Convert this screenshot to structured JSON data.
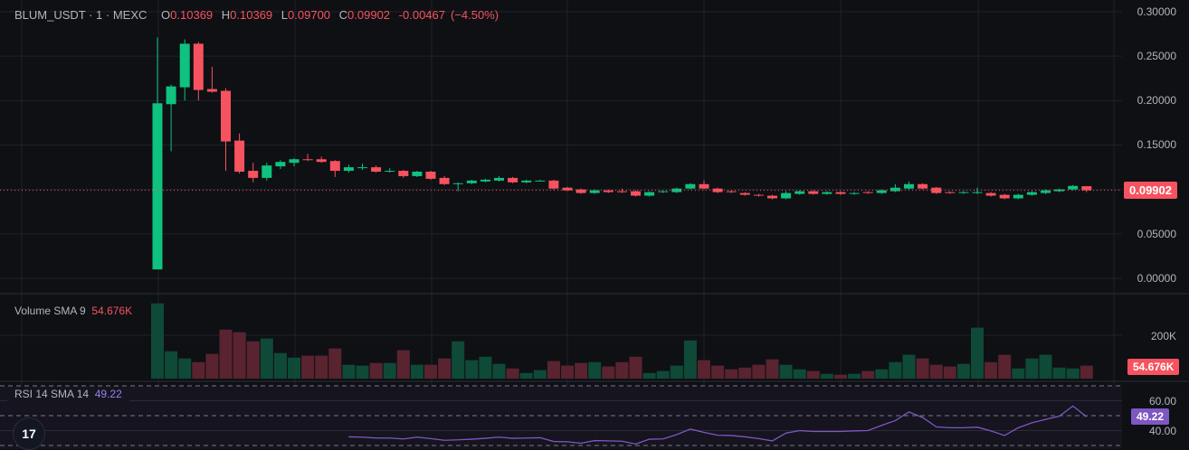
{
  "header": {
    "symbol": "BLUM_USDT · 1 · MEXC",
    "open_label": "O",
    "open": "0.10369",
    "high_label": "H",
    "high": "0.10369",
    "low_label": "L",
    "low": "0.09700",
    "close_label": "C",
    "close": "0.09902",
    "change": "-0.00467",
    "change_pct": "(−4.50%)"
  },
  "price_axis": {
    "ticks": [
      "0.30000",
      "0.25000",
      "0.20000",
      "0.15000",
      "0.10000",
      "0.05000",
      "0.00000"
    ],
    "current_price": "0.09902"
  },
  "volume_pane": {
    "label": "Volume SMA 9",
    "value": "54.676K",
    "tick": "200K",
    "current_tag": "54.676K"
  },
  "rsi_pane": {
    "label": "RSI 14 SMA 14",
    "value": "49.22",
    "ticks": [
      "60.00",
      "40.00"
    ],
    "current_tag": "49.22"
  },
  "logo_text": "TV",
  "colors": {
    "up": "#0fc27f",
    "down": "#f7525f",
    "vol_up": "#0e4a37",
    "vol_down": "#5a2330",
    "rsi_line": "#7e57c2",
    "background": "#0e1014"
  },
  "chart_data": {
    "type": "candlestick",
    "price_ylim": [
      0,
      0.3
    ],
    "volume_ylim": [
      0,
      400000
    ],
    "rsi_ylim": [
      30,
      70
    ],
    "rsi_bands": [
      70,
      50,
      30
    ],
    "ohlc": [
      [
        0.01,
        0.271,
        0.01,
        0.197
      ],
      [
        0.196,
        0.218,
        0.143,
        0.216
      ],
      [
        0.215,
        0.269,
        0.2,
        0.264
      ],
      [
        0.264,
        0.266,
        0.2,
        0.212
      ],
      [
        0.213,
        0.238,
        0.209,
        0.21
      ],
      [
        0.211,
        0.214,
        0.121,
        0.154
      ],
      [
        0.155,
        0.163,
        0.118,
        0.12
      ],
      [
        0.121,
        0.13,
        0.108,
        0.113
      ],
      [
        0.113,
        0.13,
        0.11,
        0.127
      ],
      [
        0.126,
        0.133,
        0.123,
        0.131
      ],
      [
        0.13,
        0.135,
        0.126,
        0.134
      ],
      [
        0.134,
        0.14,
        0.132,
        0.133
      ],
      [
        0.134,
        0.137,
        0.13,
        0.131
      ],
      [
        0.132,
        0.133,
        0.114,
        0.121
      ],
      [
        0.121,
        0.128,
        0.119,
        0.125
      ],
      [
        0.125,
        0.129,
        0.122,
        0.125
      ],
      [
        0.125,
        0.127,
        0.119,
        0.12
      ],
      [
        0.121,
        0.124,
        0.119,
        0.121
      ],
      [
        0.121,
        0.122,
        0.113,
        0.115
      ],
      [
        0.115,
        0.121,
        0.114,
        0.12
      ],
      [
        0.12,
        0.121,
        0.111,
        0.112
      ],
      [
        0.113,
        0.115,
        0.105,
        0.106
      ],
      [
        0.106,
        0.108,
        0.098,
        0.107
      ],
      [
        0.107,
        0.111,
        0.106,
        0.11
      ],
      [
        0.109,
        0.112,
        0.108,
        0.111
      ],
      [
        0.11,
        0.115,
        0.109,
        0.113
      ],
      [
        0.113,
        0.114,
        0.107,
        0.108
      ],
      [
        0.108,
        0.111,
        0.107,
        0.11
      ],
      [
        0.11,
        0.111,
        0.109,
        0.11
      ],
      [
        0.11,
        0.111,
        0.1,
        0.101
      ],
      [
        0.102,
        0.103,
        0.098,
        0.099
      ],
      [
        0.1,
        0.101,
        0.095,
        0.096
      ],
      [
        0.096,
        0.1,
        0.095,
        0.099
      ],
      [
        0.099,
        0.1,
        0.096,
        0.097
      ],
      [
        0.098,
        0.101,
        0.096,
        0.097
      ],
      [
        0.098,
        0.099,
        0.092,
        0.093
      ],
      [
        0.093,
        0.098,
        0.092,
        0.097
      ],
      [
        0.097,
        0.099,
        0.096,
        0.098
      ],
      [
        0.097,
        0.102,
        0.096,
        0.101
      ],
      [
        0.101,
        0.107,
        0.1,
        0.106
      ],
      [
        0.106,
        0.11,
        0.1,
        0.101
      ],
      [
        0.101,
        0.102,
        0.096,
        0.097
      ],
      [
        0.098,
        0.099,
        0.096,
        0.097
      ],
      [
        0.096,
        0.097,
        0.093,
        0.094
      ],
      [
        0.094,
        0.095,
        0.092,
        0.093
      ],
      [
        0.093,
        0.094,
        0.089,
        0.09
      ],
      [
        0.09,
        0.098,
        0.089,
        0.096
      ],
      [
        0.095,
        0.099,
        0.094,
        0.098
      ],
      [
        0.098,
        0.099,
        0.094,
        0.095
      ],
      [
        0.095,
        0.098,
        0.094,
        0.097
      ],
      [
        0.097,
        0.098,
        0.094,
        0.095
      ],
      [
        0.095,
        0.097,
        0.094,
        0.096
      ],
      [
        0.097,
        0.098,
        0.095,
        0.096
      ],
      [
        0.096,
        0.1,
        0.095,
        0.099
      ],
      [
        0.098,
        0.106,
        0.097,
        0.102
      ],
      [
        0.101,
        0.109,
        0.1,
        0.106
      ],
      [
        0.106,
        0.107,
        0.1,
        0.101
      ],
      [
        0.102,
        0.103,
        0.095,
        0.096
      ],
      [
        0.097,
        0.098,
        0.095,
        0.096
      ],
      [
        0.096,
        0.098,
        0.095,
        0.097
      ],
      [
        0.096,
        0.102,
        0.095,
        0.097
      ],
      [
        0.096,
        0.097,
        0.092,
        0.093
      ],
      [
        0.094,
        0.095,
        0.089,
        0.09
      ],
      [
        0.09,
        0.095,
        0.089,
        0.094
      ],
      [
        0.094,
        0.098,
        0.093,
        0.097
      ],
      [
        0.096,
        0.1,
        0.095,
        0.099
      ],
      [
        0.098,
        0.101,
        0.097,
        0.1
      ],
      [
        0.1,
        0.105,
        0.099,
        0.104
      ],
      [
        0.10369,
        0.10369,
        0.097,
        0.09902
      ]
    ],
    "volume": [
      347000,
      126000,
      93000,
      76000,
      114000,
      226000,
      214000,
      172000,
      185000,
      118000,
      97000,
      106000,
      106000,
      139000,
      64000,
      60000,
      72000,
      72000,
      131000,
      64000,
      64000,
      93000,
      172000,
      85000,
      101000,
      68000,
      47000,
      26000,
      39000,
      81000,
      60000,
      72000,
      76000,
      56000,
      76000,
      101000,
      26000,
      35000,
      60000,
      176000,
      85000,
      60000,
      43000,
      51000,
      64000,
      89000,
      64000,
      43000,
      35000,
      22000,
      18000,
      22000,
      35000,
      43000,
      76000,
      110000,
      93000,
      64000,
      56000,
      68000,
      235000,
      76000,
      110000,
      47000,
      93000,
      110000,
      51000,
      47000,
      60000
    ],
    "rsi": [
      null,
      null,
      null,
      null,
      null,
      null,
      null,
      null,
      null,
      null,
      null,
      null,
      null,
      null,
      35.8,
      35.6,
      35.0,
      35.0,
      34.4,
      35.6,
      34.6,
      33.5,
      33.8,
      34.2,
      34.8,
      35.6,
      34.8,
      35.0,
      35.2,
      32.7,
      32.5,
      31.5,
      33.3,
      33.1,
      32.9,
      31.0,
      34.2,
      34.4,
      37.3,
      41.0,
      38.8,
      36.9,
      36.7,
      35.8,
      34.6,
      33.1,
      38.3,
      40.0,
      39.4,
      39.4,
      39.4,
      39.8,
      40.0,
      43.5,
      46.7,
      52.5,
      48.8,
      42.5,
      41.9,
      41.9,
      42.3,
      39.8,
      36.7,
      41.9,
      45.2,
      47.5,
      49.6,
      56.5,
      49.22
    ]
  }
}
